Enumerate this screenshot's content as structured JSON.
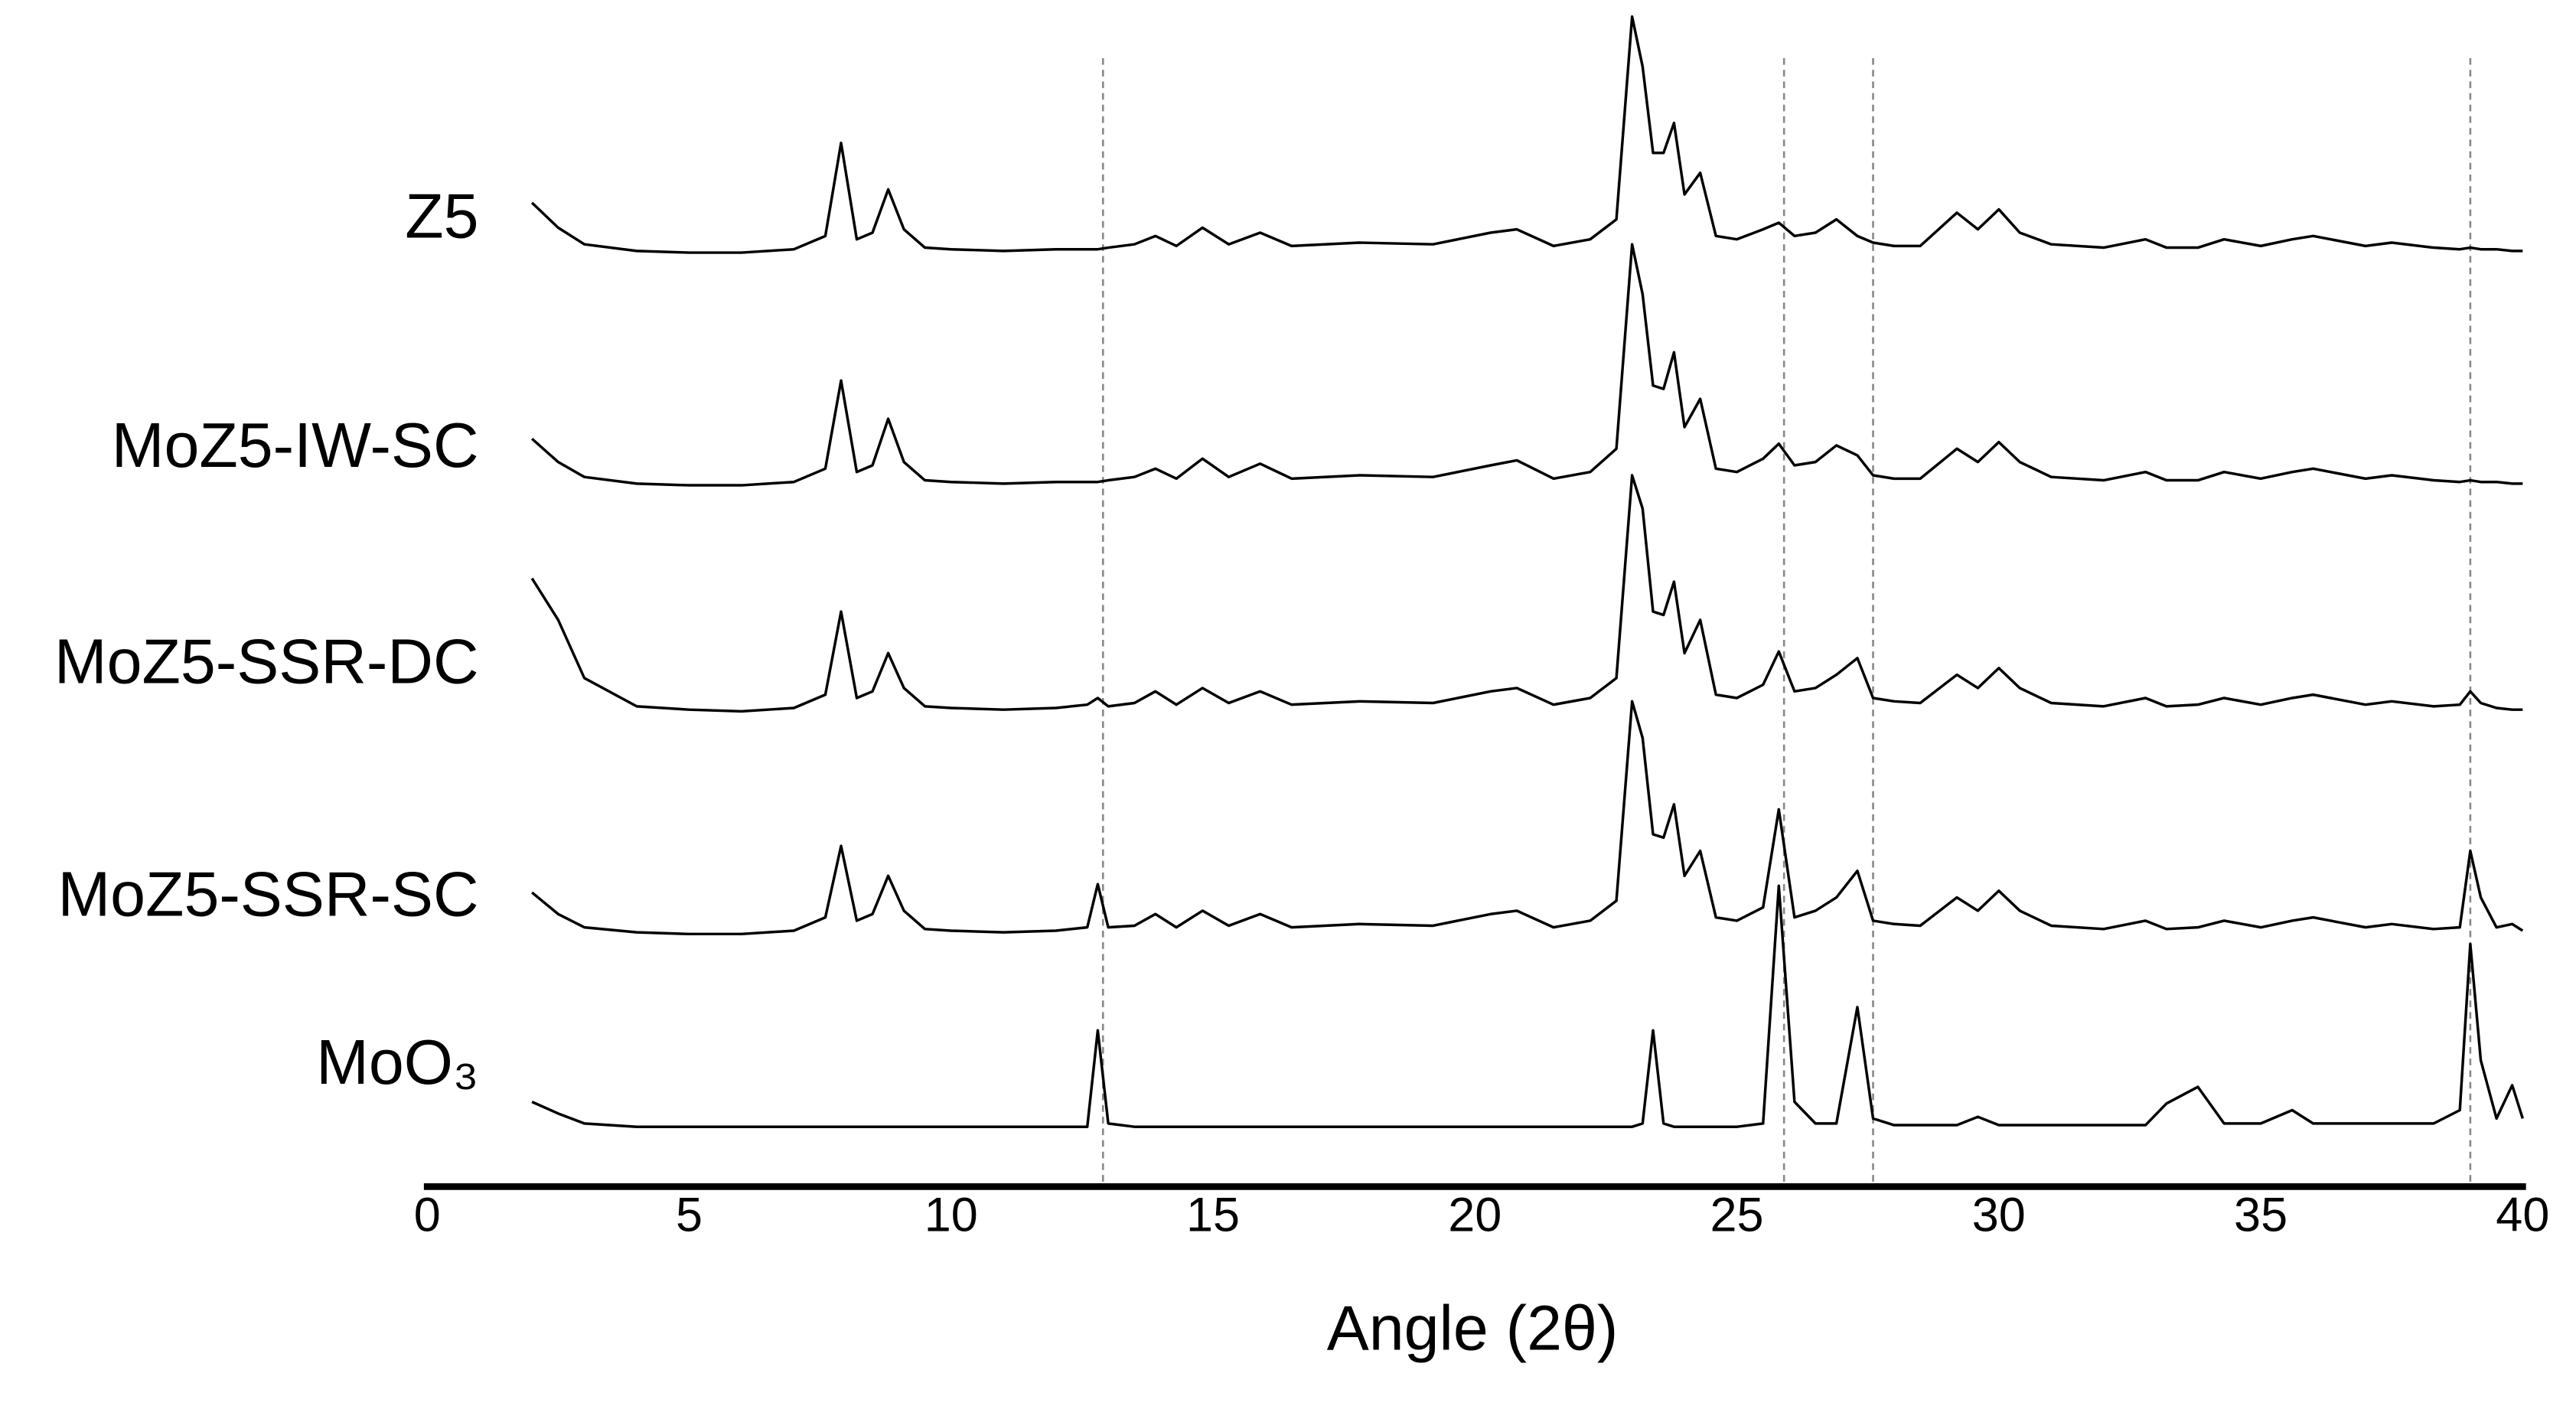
{
  "chart_data": {
    "type": "line",
    "x_label": "Angle (2θ)",
    "xlim": [
      0,
      40
    ],
    "xticks": [
      0,
      5,
      10,
      15,
      20,
      25,
      30,
      35,
      40
    ],
    "reference_lines": [
      12.9,
      25.9,
      27.6,
      39.0
    ],
    "x": [
      2,
      2.5,
      3,
      4,
      5,
      6,
      7,
      7.6,
      7.9,
      8.2,
      8.5,
      8.8,
      9.1,
      9.5,
      10,
      11,
      12,
      12.6,
      12.8,
      13.0,
      13.5,
      13.9,
      14.3,
      14.8,
      15.3,
      15.9,
      16.5,
      17.8,
      19.2,
      20.3,
      20.8,
      21.5,
      22.2,
      22.7,
      23.0,
      23.2,
      23.4,
      23.6,
      23.8,
      24.0,
      24.3,
      24.6,
      25.0,
      25.5,
      25.8,
      26.1,
      26.5,
      26.9,
      27.3,
      27.6,
      28.0,
      28.5,
      29.2,
      29.6,
      30.0,
      30.4,
      31,
      32,
      32.8,
      33.2,
      33.8,
      34.3,
      35,
      35.6,
      36,
      37,
      37.5,
      38.3,
      38.8,
      39.0,
      39.2,
      39.5,
      39.8,
      40
    ],
    "series": [
      {
        "name": "Z5",
        "color": "#000000",
        "values": [
          30,
          15,
          5,
          1,
          0,
          0,
          2,
          10,
          66,
          8,
          12,
          38,
          14,
          3,
          2,
          1,
          2,
          2,
          2,
          3,
          5,
          10,
          4,
          15,
          5,
          12,
          4,
          6,
          5,
          12,
          14,
          4,
          8,
          20,
          142,
          112,
          60,
          60,
          78,
          35,
          48,
          10,
          8,
          14,
          18,
          10,
          12,
          20,
          10,
          6,
          4,
          4,
          24,
          14,
          26,
          12,
          5,
          3,
          8,
          3,
          3,
          8,
          4,
          8,
          10,
          4,
          6,
          3,
          2,
          3,
          2,
          2,
          1,
          1
        ]
      },
      {
        "name": "MoZ5-IW-SC",
        "color": "#000000",
        "values": [
          28,
          14,
          5,
          1,
          0,
          0,
          2,
          10,
          63,
          8,
          12,
          40,
          14,
          3,
          2,
          1,
          2,
          2,
          2,
          3,
          5,
          10,
          4,
          16,
          5,
          13,
          4,
          6,
          5,
          12,
          15,
          4,
          8,
          22,
          145,
          115,
          60,
          58,
          80,
          35,
          52,
          10,
          8,
          16,
          25,
          12,
          14,
          24,
          18,
          6,
          4,
          4,
          22,
          14,
          26,
          14,
          5,
          3,
          8,
          3,
          3,
          8,
          4,
          8,
          10,
          4,
          6,
          3,
          2,
          3,
          2,
          2,
          1,
          1
        ]
      },
      {
        "name": "MoZ5-SSR-DC",
        "color": "#000000",
        "values": [
          80,
          55,
          20,
          3,
          1,
          0,
          2,
          10,
          60,
          8,
          12,
          35,
          14,
          3,
          2,
          1,
          2,
          4,
          8,
          3,
          5,
          12,
          4,
          14,
          5,
          12,
          4,
          6,
          5,
          12,
          14,
          4,
          8,
          20,
          142,
          122,
          60,
          58,
          78,
          35,
          55,
          10,
          8,
          16,
          36,
          12,
          14,
          22,
          32,
          8,
          6,
          5,
          22,
          14,
          26,
          14,
          5,
          3,
          8,
          3,
          4,
          8,
          4,
          8,
          10,
          4,
          6,
          3,
          4,
          12,
          5,
          2,
          1,
          1
        ]
      },
      {
        "name": "MoZ5-SSR-SC",
        "color": "#000000",
        "values": [
          25,
          12,
          4,
          1,
          0,
          0,
          2,
          10,
          53,
          8,
          12,
          35,
          14,
          3,
          2,
          1,
          2,
          4,
          30,
          4,
          5,
          12,
          4,
          14,
          5,
          12,
          4,
          6,
          5,
          12,
          14,
          4,
          8,
          20,
          140,
          118,
          60,
          58,
          78,
          35,
          50,
          10,
          8,
          16,
          75,
          10,
          14,
          22,
          38,
          8,
          6,
          5,
          22,
          14,
          26,
          14,
          5,
          3,
          8,
          3,
          4,
          8,
          4,
          8,
          10,
          4,
          6,
          3,
          4,
          50,
          22,
          4,
          6,
          2
        ]
      },
      {
        "name": "MoO₃",
        "color": "#000000",
        "values": [
          15,
          8,
          2,
          0,
          0,
          0,
          0,
          0,
          0,
          0,
          0,
          0,
          0,
          0,
          0,
          0,
          0,
          0,
          58,
          2,
          0,
          0,
          0,
          0,
          0,
          0,
          0,
          0,
          0,
          0,
          0,
          0,
          0,
          0,
          0,
          2,
          58,
          2,
          0,
          0,
          0,
          0,
          0,
          2,
          145,
          15,
          2,
          2,
          72,
          5,
          1,
          1,
          1,
          6,
          1,
          1,
          1,
          1,
          1,
          14,
          24,
          2,
          2,
          10,
          2,
          2,
          2,
          2,
          10,
          110,
          40,
          5,
          25,
          5
        ]
      }
    ]
  }
}
